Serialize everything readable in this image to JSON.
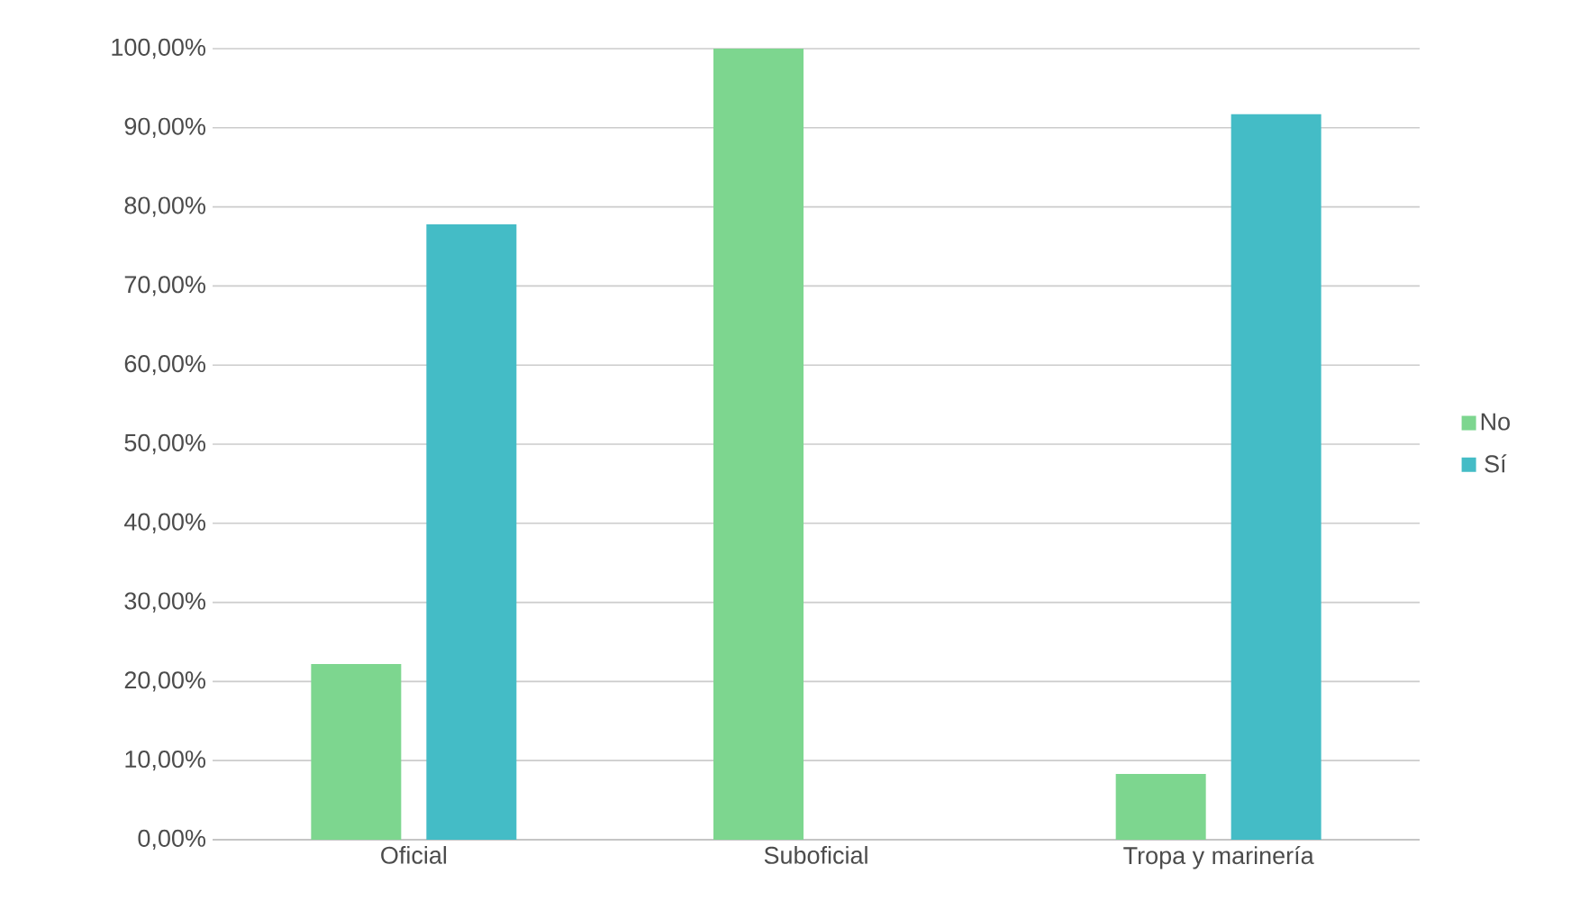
{
  "chart_data": {
    "type": "bar",
    "categories": [
      "Oficial",
      "Suboficial",
      "Tropa y marinería"
    ],
    "series": [
      {
        "name": "No",
        "color": "#7dd68f",
        "values": [
          22.2,
          100,
          8.3
        ]
      },
      {
        "name": "Sí",
        "color": "#44bcc6",
        "values": [
          77.8,
          0,
          91.7
        ]
      }
    ],
    "ylim": [
      0,
      100
    ],
    "yticks": [
      {
        "value": 0,
        "label": "0,00%"
      },
      {
        "value": 10,
        "label": "10,00%"
      },
      {
        "value": 20,
        "label": "20,00%"
      },
      {
        "value": 30,
        "label": "30,00%"
      },
      {
        "value": 40,
        "label": "40,00%"
      },
      {
        "value": 50,
        "label": "50,00%"
      },
      {
        "value": 60,
        "label": "60,00%"
      },
      {
        "value": 70,
        "label": "70,00%"
      },
      {
        "value": 80,
        "label": "80,00%"
      },
      {
        "value": 90,
        "label": "90,00%"
      },
      {
        "value": 100,
        "label": "100,00%"
      }
    ],
    "grid": "y",
    "legend": "right"
  }
}
